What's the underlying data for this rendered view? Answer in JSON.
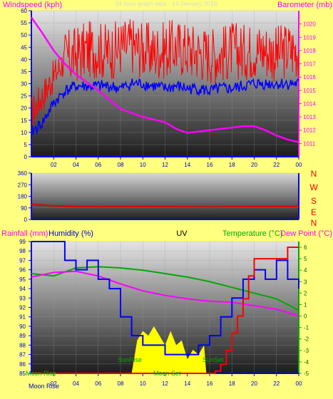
{
  "header": {
    "windspeed_label": "Windspeed (kph)",
    "barometer_label": "Barometer (mb)",
    "subtitle": "24 hour graph data - 14 January 2018"
  },
  "direction": {
    "cardinals": [
      "N",
      "W",
      "S",
      "E",
      "N"
    ]
  },
  "lower_header": {
    "rainfall_label": "Rainfall (mm)",
    "humidity_label": "Humidity (%)",
    "uv_label": "UV",
    "temperature_label": "Temperature (°C)",
    "dewpoint_label": "Dew Point (°C)"
  },
  "annotations": {
    "moon_rise": "Moon Rise",
    "sun_rise": "SunRise",
    "moon_set": "Moon Set",
    "sun_set": "SunSet"
  },
  "colors": {
    "page_bg": "#ffff80",
    "windspeed": "#ff0000",
    "wind_avg": "#0000ff",
    "barometer": "#ff00ff",
    "direction": "#e00000",
    "humidity": "#0000ff",
    "uv": "#ffff00",
    "temperature": "#ff0000",
    "dewpoint": "#00aa00",
    "text_magenta": "#ff00ff",
    "text_red": "#ff0000",
    "text_green": "#00aa00"
  },
  "chart_data": [
    {
      "type": "line",
      "x_ticks": [
        "02",
        "04",
        "06",
        "08",
        "10",
        "12",
        "14",
        "16",
        "18",
        "20",
        "22",
        "00"
      ],
      "xlim": [
        0,
        24
      ],
      "left_axis": {
        "label": "Windspeed (kph)",
        "ylim": [
          0,
          60
        ],
        "ticks": [
          0,
          5,
          10,
          15,
          20,
          25,
          30,
          35,
          40,
          45,
          50,
          55,
          60
        ]
      },
      "right_axis": {
        "label": "Barometer (mb)",
        "ylim": [
          1010,
          1021
        ],
        "ticks": [
          1011,
          1012,
          1013,
          1014,
          1015,
          1016,
          1017,
          1018,
          1019,
          1020
        ]
      },
      "series": [
        {
          "name": "Windspeed (kph)",
          "axis": "left",
          "x": [
            0,
            1,
            2,
            3,
            4,
            5,
            6,
            7,
            8,
            9,
            10,
            11,
            12,
            13,
            14,
            15,
            16,
            17,
            18,
            19,
            20,
            21,
            22,
            23,
            24
          ],
          "y": [
            18,
            25,
            33,
            40,
            42,
            44,
            44,
            43,
            45,
            46,
            44,
            43,
            44,
            45,
            44,
            43,
            42,
            42,
            44,
            43,
            44,
            44,
            42,
            44,
            44
          ]
        },
        {
          "axis": "left",
          "x": [
            0,
            1,
            2,
            3,
            4,
            5,
            6,
            7,
            8,
            9,
            10,
            11,
            12,
            13,
            14,
            15,
            16,
            17,
            18,
            19,
            20,
            21,
            22,
            23,
            24
          ],
          "y": [
            10,
            14,
            22,
            27,
            29,
            29,
            29,
            29,
            28,
            30,
            30,
            29,
            28,
            29,
            28,
            28,
            27,
            28,
            28,
            29,
            30,
            30,
            30,
            30,
            30
          ]
        },
        {
          "name": "Barometer (mb)",
          "axis": "right",
          "x": [
            0,
            1,
            2,
            3,
            4,
            5,
            6,
            7,
            8,
            9,
            10,
            11,
            12,
            13,
            14,
            15,
            16,
            17,
            18,
            19,
            20,
            21,
            22,
            23,
            24
          ],
          "y": [
            1020.5,
            1019.3,
            1018.0,
            1017.0,
            1016.2,
            1015.6,
            1015.0,
            1014.3,
            1013.6,
            1013.3,
            1013.0,
            1012.8,
            1012.6,
            1012.1,
            1011.8,
            1011.9,
            1012.0,
            1012.1,
            1012.2,
            1012.3,
            1012.3,
            1012.0,
            1011.6,
            1011.3,
            1011.1
          ]
        }
      ]
    },
    {
      "type": "line",
      "xlim": [
        0,
        24
      ],
      "left_axis": {
        "ylim": [
          0,
          360
        ],
        "ticks": [
          0,
          90,
          180,
          270,
          360
        ]
      },
      "series": [
        {
          "x": [
            0,
            2,
            4,
            6,
            8,
            10,
            12,
            14,
            16,
            18,
            20,
            22,
            24
          ],
          "y": [
            118,
            105,
            100,
            98,
            99,
            100,
            99,
            98,
            97,
            99,
            100,
            101,
            100
          ]
        }
      ]
    },
    {
      "type": "line",
      "x_ticks": [
        "02",
        "04",
        "06",
        "08",
        "10",
        "12",
        "14",
        "16",
        "18",
        "20",
        "22",
        "00"
      ],
      "xlim": [
        0,
        24
      ],
      "left_axis": {
        "label": "Humidity (%)",
        "ylim": [
          85,
          99
        ],
        "ticks": [
          85,
          86,
          87,
          88,
          89,
          90,
          91,
          92,
          93,
          94,
          95,
          96,
          97,
          98,
          99
        ]
      },
      "right_axis": {
        "label": "Temperature (°C)",
        "ylim": [
          -5,
          6.5
        ],
        "ticks": [
          -5,
          -4,
          -3,
          -2,
          -1,
          0,
          1,
          2,
          3,
          4,
          5,
          6
        ]
      },
      "series": [
        {
          "name": "Humidity (%)",
          "axis": "left",
          "x": [
            0,
            2,
            3,
            4,
            5,
            6,
            7,
            8,
            9,
            10,
            11,
            12,
            13,
            14,
            15,
            16,
            17,
            18,
            19,
            20,
            21,
            22,
            23,
            24
          ],
          "y": [
            99,
            99,
            97,
            96,
            97,
            95,
            94,
            91,
            89,
            88,
            88,
            87,
            87,
            87,
            88,
            89,
            91,
            93,
            95,
            96,
            95,
            97,
            95,
            94
          ]
        },
        {
          "name": "UV",
          "axis": "left",
          "x": [
            9,
            9.5,
            10,
            10.5,
            11,
            11.5,
            12,
            12.5,
            13,
            13.5,
            14,
            14.5,
            15,
            15.5,
            15.7
          ],
          "y": [
            85,
            88.5,
            89.5,
            89,
            90,
            89,
            88,
            89.5,
            88,
            88.5,
            86.5,
            87.5,
            87,
            88,
            85
          ]
        },
        {
          "name": "Temperature (°C)",
          "axis": "right",
          "x": [
            0,
            12,
            13,
            14,
            15,
            16,
            16.5,
            17,
            17.5,
            18,
            18.5,
            19,
            19.5,
            20,
            21,
            22,
            23,
            24
          ],
          "y": [
            -5,
            -5,
            -5,
            -5,
            -5,
            -5,
            -4.8,
            -4.2,
            -3,
            -1.5,
            0,
            1.5,
            3.5,
            5,
            5,
            5,
            6,
            6
          ]
        },
        {
          "name": "Dew Point (°C)",
          "axis": "right",
          "x": [
            0,
            2,
            4,
            6,
            8,
            10,
            12,
            14,
            16,
            18,
            20,
            22,
            24
          ],
          "y": [
            3.7,
            3.5,
            4.2,
            4.3,
            4.2,
            4.0,
            3.7,
            3.4,
            3.0,
            2.5,
            2.0,
            1.5,
            0.5
          ]
        },
        {
          "axis": "right",
          "x": [
            0,
            2,
            4,
            6,
            8,
            10,
            12,
            14,
            16,
            18,
            20,
            22,
            24
          ],
          "y": [
            3.4,
            3.8,
            3.9,
            3.5,
            2.8,
            2.2,
            1.8,
            1.5,
            1.3,
            1.2,
            0.9,
            0.6,
            0
          ]
        }
      ]
    }
  ]
}
